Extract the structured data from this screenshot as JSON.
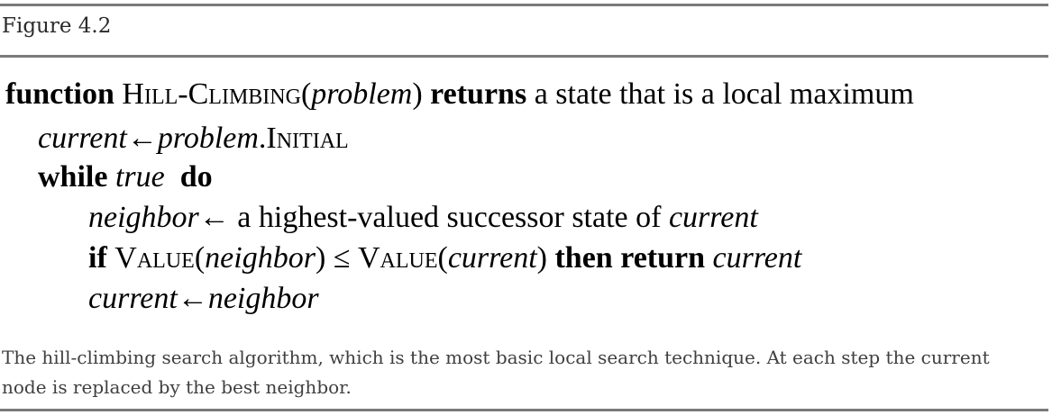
{
  "figure_label": "Figure 4.2",
  "algorithm": {
    "line1": {
      "kw_function": "function",
      "name": "Hill-Climbing",
      "open": "(",
      "param": "problem",
      "close": ")",
      "kw_returns": "returns",
      "rest": "a state that is a local maximum"
    },
    "line2": {
      "var": "current",
      "arrow": "←",
      "obj": "problem",
      "dot": ".",
      "field": "Initial"
    },
    "line3": {
      "kw_while": "while",
      "cond": "true",
      "kw_do": "do"
    },
    "line4": {
      "var": "neighbor",
      "arrow": "←",
      "rest": "a highest-valued successor state of",
      "target": "current"
    },
    "line5": {
      "kw_if": "if",
      "fn1": "Value",
      "open1": "(",
      "arg1": "neighbor",
      "close1": ")",
      "op": "≤",
      "fn2": "Value",
      "open2": "(",
      "arg2": "current",
      "close2": ")",
      "kw_then_return": "then return",
      "ret": "current"
    },
    "line6": {
      "var": "current",
      "arrow": "←",
      "value": "neighbor"
    }
  },
  "caption": "The hill-climbing search algorithm, which is the most basic local search technique. At each step the current node is replaced by the best neighbor."
}
